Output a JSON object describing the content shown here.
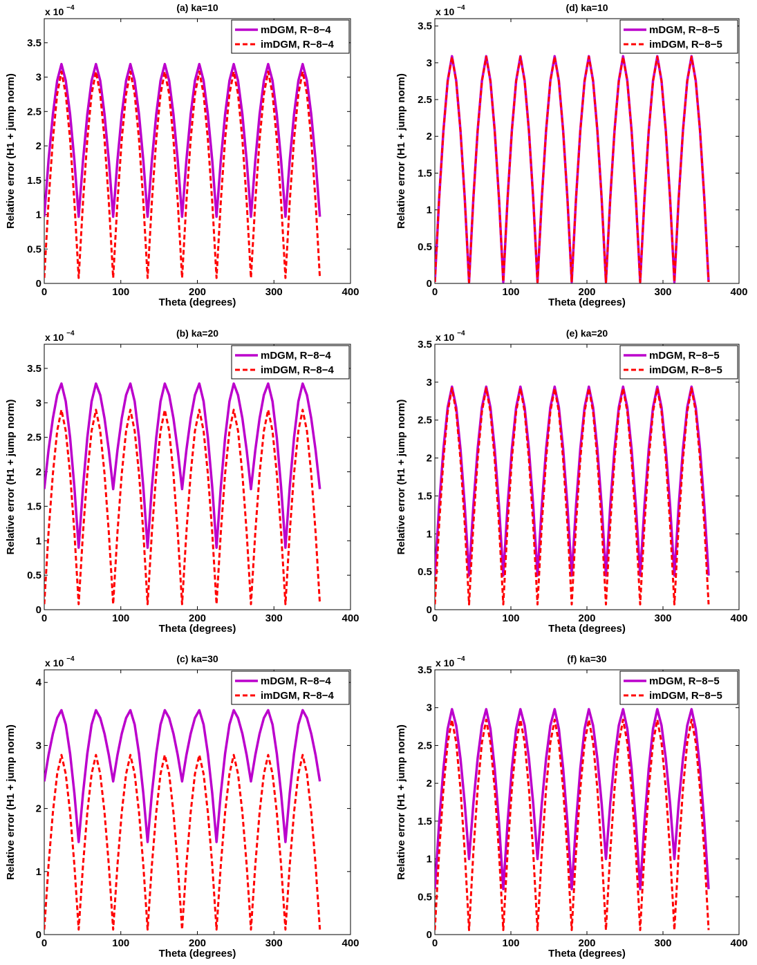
{
  "colors": {
    "mdgm": "#bb00cc",
    "imdgm": "#ff0000",
    "axes": "#000000",
    "background": "#ffffff"
  },
  "chart_data": [
    {
      "type": "line",
      "title": "(a) ka=10",
      "xlabel": "Theta (degrees)",
      "ylabel": "Relative error (H1 + jump norm)",
      "exponent_label": "x 10",
      "exponent_power": "−4",
      "xlim": [
        0,
        400
      ],
      "ylim": [
        0,
        3.85
      ],
      "xticks": [
        0,
        100,
        200,
        300,
        400
      ],
      "xtick_labels": [
        "0",
        "100",
        "200",
        "300",
        "400"
      ],
      "yticks": [
        0,
        0.5,
        1,
        1.5,
        2,
        2.5,
        3,
        3.5
      ],
      "ytick_labels": [
        "0",
        "0.5",
        "1",
        "1.5",
        "2",
        "2.5",
        "3",
        "3.5"
      ],
      "grid": false,
      "legend_position": "top-right",
      "series": [
        {
          "name": "mDGM, R−8−4",
          "style": "solid",
          "period": 45,
          "x_max": 360,
          "peak": 3.19,
          "trough": 0.97,
          "peak_offset": 22.5
        },
        {
          "name": "imDGM, R−8−4",
          "style": "dashed",
          "period": 45,
          "x_max": 360,
          "peak": 3.08,
          "trough": 0.08,
          "peak_offset": 22.5
        }
      ]
    },
    {
      "type": "line",
      "title": "(b) ka=20",
      "xlabel": "Theta (degrees)",
      "ylabel": "Relative error (H1 + jump norm)",
      "exponent_label": "x 10",
      "exponent_power": "−4",
      "xlim": [
        0,
        400
      ],
      "ylim": [
        0,
        3.85
      ],
      "xticks": [
        0,
        100,
        200,
        300,
        400
      ],
      "xtick_labels": [
        "0",
        "100",
        "200",
        "300",
        "400"
      ],
      "yticks": [
        0,
        0.5,
        1,
        1.5,
        2,
        2.5,
        3,
        3.5
      ],
      "ytick_labels": [
        "0",
        "0.5",
        "1",
        "1.5",
        "2",
        "2.5",
        "3",
        "3.5"
      ],
      "grid": false,
      "legend_position": "top-right",
      "series": [
        {
          "name": "mDGM, R−8−4",
          "style": "solid",
          "period": 90,
          "x_max": 360,
          "peak": 3.28,
          "trough": 0.9,
          "trough2": 1.75,
          "peak_offset": 22.5
        },
        {
          "name": "imDGM, R−8−4",
          "style": "dashed",
          "period": 45,
          "x_max": 360,
          "peak": 2.9,
          "trough": 0.08,
          "peak_offset": 22.5
        }
      ]
    },
    {
      "type": "line",
      "title": "(c) ka=30",
      "xlabel": "Theta (degrees)",
      "ylabel": "Relative error (H1 + jump norm)",
      "exponent_label": "x 10",
      "exponent_power": "−4",
      "xlim": [
        0,
        400
      ],
      "ylim": [
        0,
        4.2
      ],
      "xticks": [
        0,
        100,
        200,
        300,
        400
      ],
      "xtick_labels": [
        "0",
        "100",
        "200",
        "300",
        "400"
      ],
      "yticks": [
        0,
        1,
        2,
        3,
        4
      ],
      "ytick_labels": [
        "0",
        "1",
        "2",
        "3",
        "4"
      ],
      "grid": false,
      "legend_position": "top-right",
      "series": [
        {
          "name": "mDGM, R−8−4",
          "style": "solid",
          "period": 90,
          "x_max": 360,
          "peak": 3.56,
          "trough": 1.47,
          "trough2": 2.43,
          "peak_offset": 22.5
        },
        {
          "name": "imDGM, R−8−4",
          "style": "dashed",
          "period": 45,
          "x_max": 360,
          "peak": 2.85,
          "trough": 0.08,
          "peak_offset": 22.5
        }
      ]
    },
    {
      "type": "line",
      "title": "(d) ka=10",
      "xlabel": "Theta (degrees)",
      "ylabel": "Relative error (H1 + jump norm)",
      "exponent_label": "x 10",
      "exponent_power": "−4",
      "xlim": [
        0,
        400
      ],
      "ylim": [
        0,
        3.6
      ],
      "xticks": [
        0,
        100,
        200,
        300,
        400
      ],
      "xtick_labels": [
        "0",
        "100",
        "200",
        "300",
        "400"
      ],
      "yticks": [
        0,
        0.5,
        1,
        1.5,
        2,
        2.5,
        3,
        3.5
      ],
      "ytick_labels": [
        "0",
        "0.5",
        "1",
        "1.5",
        "2",
        "2.5",
        "3",
        "3.5"
      ],
      "grid": false,
      "legend_position": "top-right",
      "series": [
        {
          "name": "mDGM, R−8−5",
          "style": "solid",
          "period": 45,
          "x_max": 360,
          "peak": 3.09,
          "trough": 0.02,
          "peak_offset": 22.5
        },
        {
          "name": "imDGM, R−8−5",
          "style": "dashed",
          "period": 45,
          "x_max": 360,
          "peak": 3.08,
          "trough": 0.02,
          "peak_offset": 22.5
        }
      ]
    },
    {
      "type": "line",
      "title": "(e) ka=20",
      "xlabel": "Theta (degrees)",
      "ylabel": "Relative error (H1 + jump norm)",
      "exponent_label": "x 10",
      "exponent_power": "−4",
      "xlim": [
        0,
        400
      ],
      "ylim": [
        0,
        3.5
      ],
      "xticks": [
        0,
        100,
        200,
        300,
        400
      ],
      "xtick_labels": [
        "0",
        "100",
        "200",
        "300",
        "400"
      ],
      "yticks": [
        0,
        0.5,
        1,
        1.5,
        2,
        2.5,
        3,
        3.5
      ],
      "ytick_labels": [
        "0",
        "0.5",
        "1",
        "1.5",
        "2",
        "2.5",
        "3",
        "3.5"
      ],
      "grid": false,
      "legend_position": "top-right",
      "series": [
        {
          "name": "mDGM, R−8−5",
          "style": "solid",
          "period": 45,
          "x_max": 360,
          "peak": 2.94,
          "trough": 0.45,
          "peak_offset": 22.5
        },
        {
          "name": "imDGM, R−8−5",
          "style": "dashed",
          "period": 45,
          "x_max": 360,
          "peak": 2.92,
          "trough": 0.07,
          "peak_offset": 22.5
        }
      ]
    },
    {
      "type": "line",
      "title": "(f) ka=30",
      "xlabel": "Theta (degrees)",
      "ylabel": "Relative error (H1 + jump norm)",
      "exponent_label": "x 10",
      "exponent_power": "−4",
      "xlim": [
        0,
        400
      ],
      "ylim": [
        0,
        3.5
      ],
      "xticks": [
        0,
        100,
        200,
        300,
        400
      ],
      "xtick_labels": [
        "0",
        "100",
        "200",
        "300",
        "400"
      ],
      "yticks": [
        0,
        0.5,
        1,
        1.5,
        2,
        2.5,
        3,
        3.5
      ],
      "ytick_labels": [
        "0",
        "0.5",
        "1",
        "1.5",
        "2",
        "2.5",
        "3",
        "3.5"
      ],
      "grid": false,
      "legend_position": "top-right",
      "series": [
        {
          "name": "mDGM, R−8−5",
          "style": "solid",
          "period": 45,
          "x_max": 360,
          "peak": 2.98,
          "trough": 0.6,
          "trough2": 1.0,
          "alt": true,
          "peak_offset": 22.5
        },
        {
          "name": "imDGM, R−8−5",
          "style": "dashed",
          "period": 45,
          "x_max": 360,
          "peak": 2.84,
          "trough": 0.06,
          "peak_offset": 22.5
        }
      ]
    }
  ]
}
